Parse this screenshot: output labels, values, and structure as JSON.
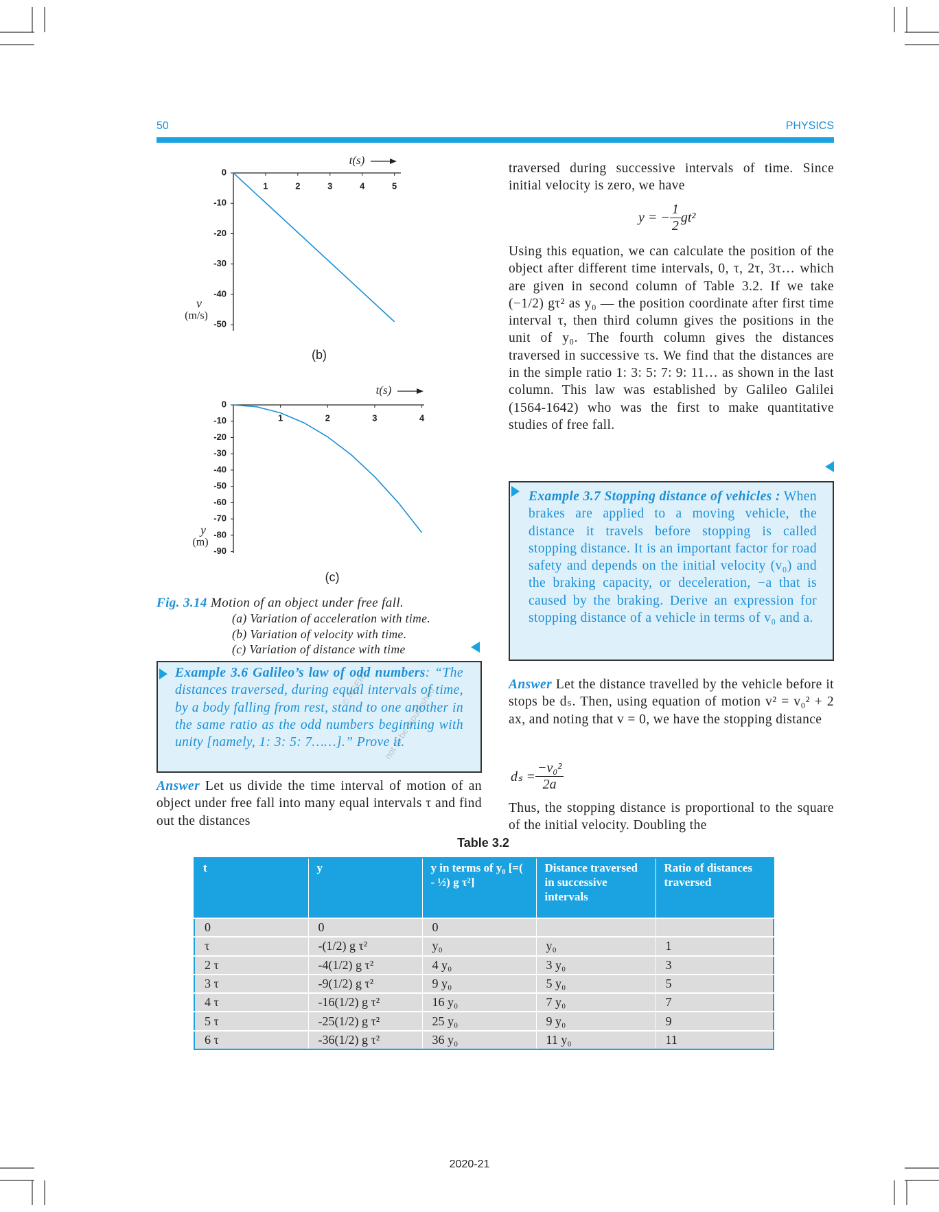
{
  "header": {
    "page_number": "50",
    "subject": "PHYSICS"
  },
  "figures": [
    {
      "caption": "(b)",
      "x_label": "t(s)",
      "y_label": "v",
      "y_unit": "(m/s)",
      "xlim": [
        0,
        5.2
      ],
      "ylim": [
        -52,
        0
      ],
      "xticks": [
        1,
        2,
        3,
        4,
        5
      ],
      "yticks": [
        0,
        -10,
        -20,
        -30,
        -40,
        -50
      ],
      "x": [
        0,
        5
      ],
      "y": [
        0,
        -49
      ]
    },
    {
      "caption": "(c)",
      "x_label": "t(s)",
      "y_label": "y",
      "y_unit": "(m)",
      "xlim": [
        0,
        4.05
      ],
      "ylim": [
        -91,
        0
      ],
      "xticks": [
        1,
        2,
        3,
        4
      ],
      "yticks": [
        0,
        -10,
        -20,
        -30,
        -40,
        -50,
        -60,
        -70,
        -80,
        -90
      ],
      "x": [
        0,
        0.5,
        1,
        1.5,
        2,
        2.5,
        3,
        3.5,
        4
      ],
      "y": [
        0,
        -1.2,
        -4.9,
        -11,
        -19.6,
        -30.6,
        -44.1,
        -60,
        -78.4
      ]
    }
  ],
  "figure_caption": {
    "label": "Fig. 3.14",
    "title": "Motion of an object under free fall.",
    "items": [
      "(a) Variation of acceleration with time.",
      "(b) Variation of velocity with time.",
      "(c) Variation of distance with time"
    ]
  },
  "example_3_6": {
    "label": "Example 3.6",
    "title": "Galileo’s law of odd numbers",
    "text": ": “The distances traversed, during equal intervals of time, by a body falling from rest, stand to one another in the same ratio as the odd numbers beginning with unity [namely, 1: 3: 5: 7……].” Prove it."
  },
  "answer_3_6": {
    "label": "Answer",
    "text": "Let us divide the time interval of motion of an object under free fall into many equal intervals τ and find out the distances",
    "continued": "traversed during successive intervals of time. Since initial velocity is zero, we have"
  },
  "equation_1": {
    "lhs": "y = −",
    "numerator": "1",
    "denominator": "2",
    "rhs": "gt²"
  },
  "paragraph": "Using this equation, we can calculate the position of the object after different time intervals, 0, τ, 2τ, 3τ… which are given in second column of Table 3.2. If we take (−1/2) gτ² as y₀ — the position coordinate after first time interval τ, then third column gives the positions in the unit of y₀. The fourth column gives the distances traversed in successive τs. We find that the distances are in the simple ratio 1: 3: 5: 7: 9: 11… as shown in the last column. This law was established by Galileo Galilei (1564-1642) who was the first to make quantitative studies of free fall.",
  "example_3_7": {
    "label": "Example 3.7",
    "title": "Stopping distance of vehicles :",
    "text": "When brakes are applied to a moving vehicle, the distance it travels before stopping is called stopping distance. It is an important factor for road safety and depends on the initial velocity (v₀) and the braking capacity, or deceleration, −a that is caused by the braking. Derive an expression for stopping distance of a vehicle in terms of v₀ and a."
  },
  "answer_3_7": {
    "label": "Answer",
    "text": "Let the distance travelled by the vehicle before it stops be dₛ. Then, using equation of motion v² = v₀² + 2 ax, and noting that v = 0, we have the stopping distance",
    "after": "Thus, the stopping distance is proportional to the square of the initial velocity. Doubling the"
  },
  "equation_2": {
    "lhs": "dₛ =",
    "numerator": "−v₀²",
    "denominator": "2a"
  },
  "table": {
    "title": "Table 3.2",
    "header": [
      "t",
      "y",
      "y in terms of y₀ [=( - ½) g τ²]",
      "Distance traversed in successive intervals",
      "Ratio of distances traversed"
    ],
    "rows": [
      [
        "0",
        "0",
        "0"
      ],
      [
        "τ",
        "-(1/2) g τ²",
        "y₀",
        "y₀",
        "1"
      ],
      [
        "2 τ",
        "-4(1/2) g τ²",
        "4 y₀",
        "3 y₀",
        "3"
      ],
      [
        "3 τ",
        "-9(1/2) g τ²",
        "9 y₀",
        "5 y₀",
        "5"
      ],
      [
        "4 τ",
        "-16(1/2) g τ²",
        "16 y₀",
        "7 y₀",
        "7"
      ],
      [
        "5 τ",
        "-25(1/2) g τ²",
        "25 y₀",
        "9 y₀",
        "9"
      ],
      [
        "6 τ",
        "-36(1/2) g τ²",
        "36 y₀",
        "11 y₀",
        "11"
      ]
    ]
  },
  "watermark": {
    "line1": "© NCERT",
    "line2": "not to be republished"
  },
  "footer": "2020-21"
}
